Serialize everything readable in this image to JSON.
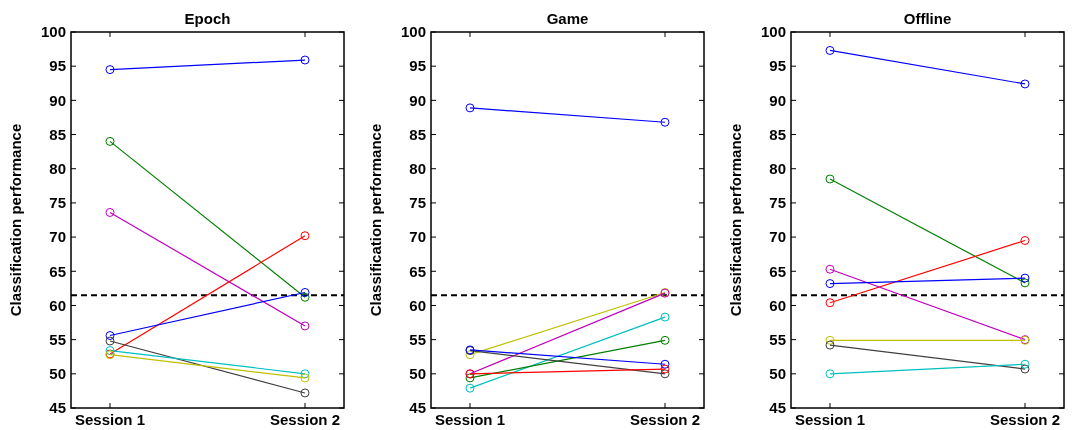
{
  "chart_data": [
    {
      "type": "line",
      "title": "Epoch",
      "ylabel": "Classification performance",
      "categories": [
        "Session 1",
        "Session 2"
      ],
      "ylim": [
        45,
        100
      ],
      "yticks": [
        45,
        50,
        55,
        60,
        65,
        70,
        75,
        80,
        85,
        90,
        95,
        100
      ],
      "marker": "circle",
      "line_style": "solid",
      "grid": false,
      "ref_lines": [
        {
          "axis": "y",
          "value": 61.5,
          "color": "#000000",
          "line_style": "dashed"
        }
      ],
      "series": [
        {
          "color": "#0000ff",
          "values": [
            94.5,
            95.9
          ]
        },
        {
          "color": "#008000",
          "values": [
            84,
            61.2
          ]
        },
        {
          "color": "#bf00bf",
          "values": [
            73.6,
            57
          ]
        },
        {
          "color": "#ff0000",
          "values": [
            52.9,
            70.2
          ]
        },
        {
          "color": "#0000ff",
          "values": [
            55.6,
            61.9
          ]
        },
        {
          "color": "#404040",
          "values": [
            54.8,
            47.2
          ]
        },
        {
          "color": "#00bfbf",
          "values": [
            53.4,
            50
          ]
        },
        {
          "color": "#bfbf00",
          "values": [
            52.8,
            49.4
          ]
        }
      ]
    },
    {
      "type": "line",
      "title": "Game",
      "ylabel": "Classification performance",
      "categories": [
        "Session 1",
        "Session 2"
      ],
      "ylim": [
        45,
        100
      ],
      "yticks": [
        45,
        50,
        55,
        60,
        65,
        70,
        75,
        80,
        85,
        90,
        95,
        100
      ],
      "marker": "circle",
      "line_style": "solid",
      "grid": false,
      "ref_lines": [
        {
          "axis": "y",
          "value": 61.5,
          "color": "#000000",
          "line_style": "dashed"
        }
      ],
      "series": [
        {
          "color": "#0000ff",
          "values": [
            88.9,
            86.8
          ]
        },
        {
          "color": "#bfbf00",
          "values": [
            52.8,
            61.9
          ]
        },
        {
          "color": "#bf00bf",
          "values": [
            50,
            61.8
          ]
        },
        {
          "color": "#00bfbf",
          "values": [
            47.9,
            58.3
          ]
        },
        {
          "color": "#008000",
          "values": [
            49.4,
            54.9
          ]
        },
        {
          "color": "#404040",
          "values": [
            53.4,
            50
          ]
        },
        {
          "color": "#0000ff",
          "values": [
            53.5,
            51.4
          ]
        },
        {
          "color": "#ff0000",
          "values": [
            50,
            50.7
          ]
        }
      ]
    },
    {
      "type": "line",
      "title": "Offline",
      "ylabel": "Classification performance",
      "categories": [
        "Session 1",
        "Session 2"
      ],
      "ylim": [
        45,
        100
      ],
      "yticks": [
        45,
        50,
        55,
        60,
        65,
        70,
        75,
        80,
        85,
        90,
        95,
        100
      ],
      "marker": "circle",
      "line_style": "solid",
      "grid": false,
      "ref_lines": [
        {
          "axis": "y",
          "value": 61.5,
          "color": "#000000",
          "line_style": "dashed"
        }
      ],
      "series": [
        {
          "color": "#0000ff",
          "values": [
            97.3,
            92.4
          ]
        },
        {
          "color": "#008000",
          "values": [
            78.5,
            63.3
          ]
        },
        {
          "color": "#ff0000",
          "values": [
            60.4,
            69.5
          ]
        },
        {
          "color": "#bf00bf",
          "values": [
            65.3,
            55
          ]
        },
        {
          "color": "#0000ff",
          "values": [
            63.2,
            64
          ]
        },
        {
          "color": "#bfbf00",
          "values": [
            54.9,
            54.9
          ]
        },
        {
          "color": "#404040",
          "values": [
            54.2,
            50.7
          ]
        },
        {
          "color": "#00bfbf",
          "values": [
            50,
            51.4
          ]
        }
      ]
    }
  ]
}
